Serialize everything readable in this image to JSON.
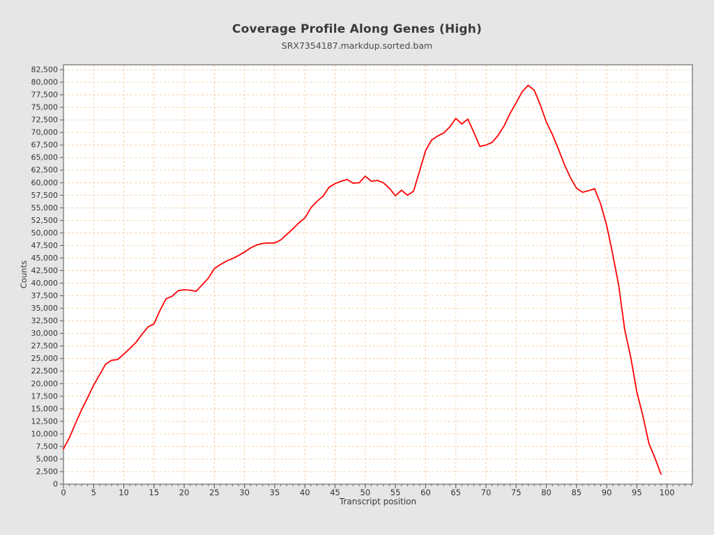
{
  "chart": {
    "title": "Coverage Profile Along Genes (High)",
    "subtitle": "SRX7354187.markdup.sorted.bam",
    "xlabel": "Transcript position",
    "ylabel": "Counts"
  },
  "colors": {
    "background": "#e6e6e6",
    "plot_background": "#ffffff",
    "grid": "#f6cfa8",
    "line": "#ff0000",
    "border": "#808080",
    "tick_text": "#333333",
    "tick_mark": "#555555"
  },
  "chart_data": {
    "type": "line",
    "title": "Coverage Profile Along Genes (High)",
    "subtitle": "SRX7354187.markdup.sorted.bam",
    "xlabel": "Transcript position",
    "ylabel": "Counts",
    "series_name": "SRX7354187.markdup.sorted.bam",
    "grid": true,
    "legend": false,
    "xlim": [
      0,
      104.2
    ],
    "ylim": [
      0,
      83470
    ],
    "x_tick_step": 5,
    "x_minor_tick_step": 1,
    "y_tick_step": 2500,
    "x_tick_max": 100,
    "y_tick_max": 82500,
    "x": [
      0,
      1,
      2,
      3,
      4,
      5,
      6,
      7,
      8,
      9,
      10,
      11,
      12,
      13,
      14,
      15,
      16,
      17,
      18,
      19,
      20,
      21,
      22,
      23,
      24,
      25,
      26,
      27,
      28,
      29,
      30,
      31,
      32,
      33,
      34,
      35,
      36,
      37,
      38,
      39,
      40,
      41,
      42,
      43,
      44,
      45,
      46,
      47,
      48,
      49,
      50,
      51,
      52,
      53,
      54,
      55,
      56,
      57,
      58,
      59,
      60,
      61,
      62,
      63,
      64,
      65,
      66,
      67,
      68,
      69,
      70,
      71,
      72,
      73,
      74,
      75,
      76,
      77,
      78,
      79,
      80,
      81,
      82,
      83,
      84,
      85,
      86,
      87,
      88,
      89,
      90,
      91,
      92,
      93,
      94,
      95,
      96,
      97,
      98,
      99
    ],
    "values": [
      7000,
      9300,
      12100,
      14800,
      17200,
      19700,
      21800,
      23900,
      24650,
      24800,
      25900,
      27000,
      28200,
      29800,
      31300,
      31900,
      34600,
      36900,
      37400,
      38500,
      38700,
      38600,
      38400,
      39700,
      41000,
      42900,
      43700,
      44400,
      44900,
      45500,
      46200,
      47000,
      47600,
      47900,
      48000,
      48000,
      48600,
      49700,
      50800,
      52000,
      53000,
      55000,
      56300,
      57300,
      59100,
      59800,
      60300,
      60650,
      59900,
      60000,
      61300,
      60300,
      60450,
      60000,
      58900,
      57400,
      58500,
      57500,
      58300,
      62300,
      66400,
      68500,
      69300,
      69900,
      71100,
      72800,
      71700,
      72650,
      70000,
      67200,
      67500,
      68000,
      69400,
      71300,
      73800,
      75900,
      78100,
      79400,
      78400,
      75500,
      72100,
      69600,
      66700,
      63600,
      61000,
      58900,
      58100,
      58400,
      58800,
      55800,
      51500,
      45800,
      39500,
      30700,
      25200,
      18300,
      13600,
      8100,
      5200,
      2000
    ]
  }
}
